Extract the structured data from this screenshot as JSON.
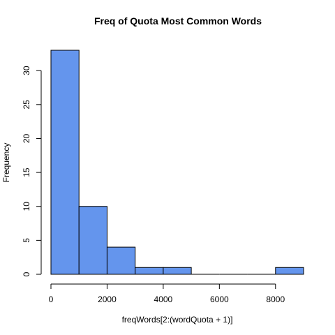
{
  "chart_data": {
    "type": "bar",
    "title": "Freq of Quota Most Common Words",
    "xlabel": "freqWords[2:(wordQuota + 1)]",
    "ylabel": "Frequency",
    "bins": [
      {
        "from": 0,
        "to": 1000,
        "count": 33
      },
      {
        "from": 1000,
        "to": 2000,
        "count": 10
      },
      {
        "from": 2000,
        "to": 3000,
        "count": 4
      },
      {
        "from": 3000,
        "to": 4000,
        "count": 1
      },
      {
        "from": 4000,
        "to": 5000,
        "count": 1
      },
      {
        "from": 5000,
        "to": 6000,
        "count": 0
      },
      {
        "from": 6000,
        "to": 7000,
        "count": 0
      },
      {
        "from": 7000,
        "to": 8000,
        "count": 0
      },
      {
        "from": 8000,
        "to": 9000,
        "count": 1
      }
    ],
    "xticks": [
      0,
      2000,
      4000,
      6000,
      8000
    ],
    "yticks": [
      0,
      5,
      10,
      15,
      20,
      25,
      30
    ],
    "xlim": [
      0,
      9000
    ],
    "ylim": [
      0,
      33
    ],
    "bar_color": "#6495ED",
    "grid": false
  }
}
